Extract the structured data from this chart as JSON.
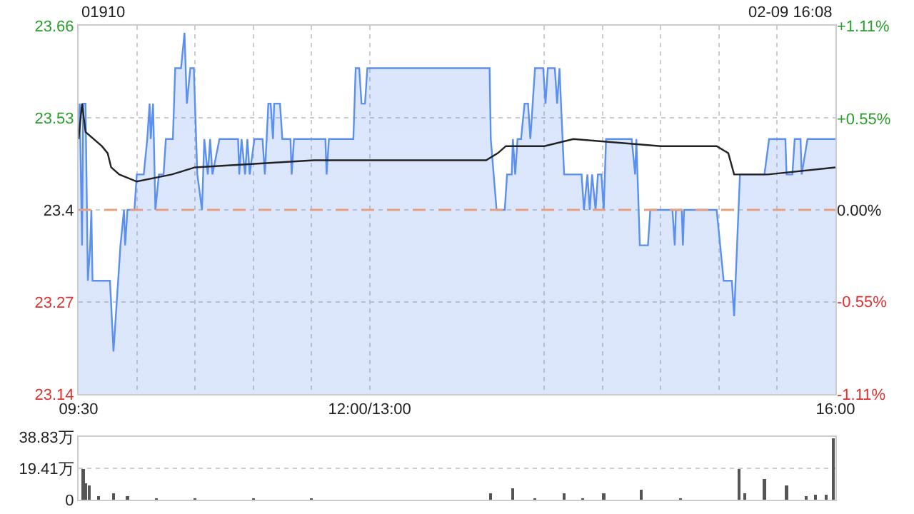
{
  "chart_data": [
    {
      "type": "area",
      "title": "01910",
      "subtitle": "02-09 16:08",
      "xlim": [
        9.5,
        16
      ],
      "xticks": [
        {
          "value": 9.5,
          "label": "09:30"
        },
        {
          "value": 10,
          "label": null
        },
        {
          "value": 10.5,
          "label": null
        },
        {
          "value": 11,
          "label": null
        },
        {
          "value": 11.5,
          "label": null
        },
        {
          "value": 12,
          "label": "12:00/13:00"
        },
        {
          "value": 13.5,
          "label": null
        },
        {
          "value": 14,
          "label": null
        },
        {
          "value": 14.5,
          "label": null
        },
        {
          "value": 15,
          "label": null
        },
        {
          "value": 15.5,
          "label": null
        },
        {
          "value": 16,
          "label": "16:00"
        }
      ],
      "ylim": [
        23.14,
        23.66
      ],
      "yticks": [
        23.14,
        23.27,
        23.4,
        23.53,
        23.66
      ],
      "y2lim": [
        -1.11,
        1.11
      ],
      "y2ticks": [
        {
          "value": -1.11,
          "label": "-1.11%"
        },
        {
          "value": -0.55,
          "label": "-0.55%"
        },
        {
          "value": 0,
          "label": "0.00%"
        },
        {
          "value": 0.55,
          "label": "+0.55%"
        },
        {
          "value": 1.11,
          "label": "+1.11%"
        }
      ],
      "grid": true,
      "marker": "none",
      "ref_lines": [
        {
          "axis": "y",
          "value": 23.4,
          "color": "#e8a080",
          "line_style": "dashed"
        }
      ],
      "series": [
        {
          "color": "#5b8ff0",
          "x": [
            9.5,
            9.51,
            9.53,
            9.54,
            9.56,
            9.58,
            9.6,
            9.61,
            9.62,
            9.77,
            9.8,
            9.86,
            9.89,
            9.9,
            9.92,
            9.98,
            10,
            10.06,
            10.09,
            10.11,
            10.12,
            10.14,
            10.16,
            10.19,
            10.23,
            10.25,
            10.31,
            10.33,
            10.38,
            10.41,
            10.43,
            10.46,
            10.49,
            10.52,
            10.56,
            10.58,
            10.61,
            10.63,
            10.65,
            10.71,
            10.87,
            10.88,
            10.9,
            10.93,
            10.95,
            10.97,
            11.01,
            11.08,
            11.1,
            11.13,
            11.15,
            11.17,
            11.18,
            11.23,
            11.25,
            11.32,
            11.33,
            11.35,
            11.62,
            11.63,
            11.65,
            11.86,
            11.88,
            11.91,
            11.93,
            11.96,
            11.98,
            12,
            13,
            13.03,
            13.04,
            13.09,
            13.16,
            13.18,
            13.22,
            13.23,
            13.25,
            13.27,
            13.3,
            13.33,
            13.36,
            13.38,
            13.42,
            13.49,
            13.51,
            13.53,
            13.59,
            13.61,
            13.63,
            13.67,
            13.82,
            13.84,
            13.87,
            13.89,
            13.91,
            13.94,
            13.96,
            13.99,
            14.01,
            14.03,
            14.25,
            14.28,
            14.29,
            14.32,
            14.39,
            14.41,
            14.6,
            14.62,
            14.63,
            14.68,
            14.69,
            14.7,
            14.98,
            15.01,
            15.04,
            15.11,
            15.13,
            15.18,
            15.39,
            15.43,
            15.57,
            15.58,
            15.63,
            15.65,
            15.7,
            15.71,
            15.76,
            16
          ],
          "values": [
            23.5,
            23.55,
            23.35,
            23.55,
            23.55,
            23.3,
            23.35,
            23.4,
            23.3,
            23.3,
            23.2,
            23.35,
            23.4,
            23.35,
            23.4,
            23.4,
            23.45,
            23.45,
            23.5,
            23.55,
            23.5,
            23.55,
            23.4,
            23.45,
            23.45,
            23.5,
            23.5,
            23.6,
            23.6,
            23.65,
            23.55,
            23.6,
            23.6,
            23.45,
            23.4,
            23.5,
            23.45,
            23.5,
            23.45,
            23.5,
            23.5,
            23.45,
            23.5,
            23.45,
            23.5,
            23.45,
            23.5,
            23.5,
            23.45,
            23.55,
            23.55,
            23.5,
            23.55,
            23.55,
            23.5,
            23.5,
            23.45,
            23.5,
            23.5,
            23.45,
            23.5,
            23.5,
            23.6,
            23.6,
            23.55,
            23.55,
            23.6,
            23.6,
            23.6,
            23.6,
            23.5,
            23.4,
            23.4,
            23.45,
            23.45,
            23.5,
            23.45,
            23.5,
            23.5,
            23.55,
            23.55,
            23.5,
            23.6,
            23.6,
            23.55,
            23.6,
            23.6,
            23.55,
            23.6,
            23.45,
            23.45,
            23.4,
            23.45,
            23.4,
            23.45,
            23.4,
            23.45,
            23.45,
            23.4,
            23.5,
            23.5,
            23.45,
            23.5,
            23.35,
            23.35,
            23.4,
            23.4,
            23.35,
            23.4,
            23.4,
            23.35,
            23.4,
            23.4,
            23.35,
            23.3,
            23.3,
            23.25,
            23.45,
            23.45,
            23.5,
            23.5,
            23.45,
            23.45,
            23.5,
            23.5,
            23.45,
            23.5,
            23.5
          ]
        },
        {
          "type": "line",
          "color": "#222222",
          "x": [
            9.5,
            9.53,
            9.56,
            9.7,
            9.75,
            9.78,
            9.85,
            10,
            10.3,
            10.5,
            11.52,
            12,
            13,
            13.1,
            13.17,
            13.5,
            13.75,
            14.5,
            14.98,
            15.08,
            15.13,
            15.42,
            16
          ],
          "values": [
            23.5,
            23.55,
            23.51,
            23.49,
            23.48,
            23.46,
            23.45,
            23.44,
            23.45,
            23.46,
            23.47,
            23.47,
            23.47,
            23.48,
            23.49,
            23.49,
            23.5,
            23.49,
            23.49,
            23.48,
            23.45,
            23.45,
            23.46
          ]
        }
      ]
    },
    {
      "type": "bar",
      "tick_labels": "y",
      "grid": "y",
      "xlim": [
        9.5,
        16
      ],
      "ylim": [
        0,
        38.83
      ],
      "yticks": [
        0,
        {
          "value": 19.41,
          "label": "19.41万"
        },
        {
          "value": 38.83,
          "label": "38.83万"
        }
      ],
      "series": [
        {
          "color": "#555555",
          "x": [
            9.54,
            9.56,
            9.59,
            9.67,
            9.8,
            9.92,
            10.17,
            10.5,
            11,
            11.5,
            13.04,
            13.23,
            13.42,
            13.67,
            13.83,
            14.01,
            14.33,
            14.67,
            15.17,
            15.22,
            15.39,
            15.58,
            15.75,
            15.83,
            15.92,
            15.98
          ],
          "values": [
            19,
            10,
            9,
            2,
            4,
            2,
            1,
            1,
            1,
            1,
            4,
            7,
            1,
            4,
            1,
            4,
            6,
            1,
            19,
            4,
            13,
            9,
            2,
            3,
            3,
            38
          ]
        }
      ]
    }
  ]
}
